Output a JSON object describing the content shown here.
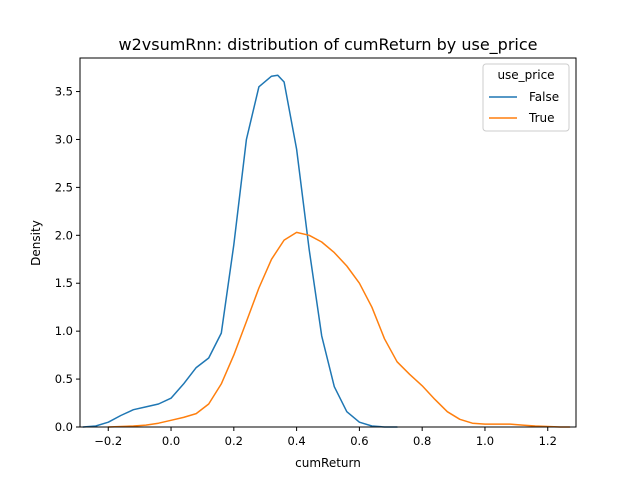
{
  "chart_data": {
    "type": "line",
    "title": "w2vsumRnn: distribution of cumReturn by use_price",
    "xlabel": "cumReturn",
    "ylabel": "Density",
    "xlim": [
      -0.29,
      1.29
    ],
    "ylim": [
      0,
      3.85
    ],
    "xticks": [
      -0.2,
      0.0,
      0.2,
      0.4,
      0.6,
      0.8,
      1.0,
      1.2
    ],
    "xtick_labels": [
      "−0.2",
      "0.0",
      "0.2",
      "0.4",
      "0.6",
      "0.8",
      "1.0",
      "1.2"
    ],
    "yticks": [
      0.0,
      0.5,
      1.0,
      1.5,
      2.0,
      2.5,
      3.0,
      3.5
    ],
    "ytick_labels": [
      "0.0",
      "0.5",
      "1.0",
      "1.5",
      "2.0",
      "2.5",
      "3.0",
      "3.5"
    ],
    "grid": false,
    "legend": {
      "title": "use_price",
      "placement": "top-right"
    },
    "series": [
      {
        "name": "False",
        "color": "#1f77b4",
        "x": [
          -0.28,
          -0.24,
          -0.2,
          -0.16,
          -0.12,
          -0.08,
          -0.04,
          0.0,
          0.04,
          0.08,
          0.12,
          0.16,
          0.2,
          0.24,
          0.28,
          0.32,
          0.34,
          0.36,
          0.4,
          0.44,
          0.48,
          0.52,
          0.56,
          0.6,
          0.64,
          0.68,
          0.72
        ],
        "y": [
          0.0,
          0.01,
          0.05,
          0.12,
          0.18,
          0.21,
          0.24,
          0.3,
          0.45,
          0.62,
          0.72,
          0.98,
          1.9,
          3.0,
          3.55,
          3.66,
          3.67,
          3.6,
          2.9,
          1.85,
          0.95,
          0.42,
          0.16,
          0.05,
          0.01,
          0.0,
          0.0
        ]
      },
      {
        "name": "True",
        "color": "#ff7f0e",
        "x": [
          -0.2,
          -0.16,
          -0.12,
          -0.08,
          -0.04,
          0.0,
          0.04,
          0.08,
          0.12,
          0.16,
          0.2,
          0.24,
          0.28,
          0.32,
          0.36,
          0.4,
          0.44,
          0.48,
          0.52,
          0.56,
          0.6,
          0.64,
          0.68,
          0.72,
          0.76,
          0.8,
          0.84,
          0.88,
          0.92,
          0.96,
          1.0,
          1.04,
          1.08,
          1.12,
          1.16,
          1.2,
          1.24,
          1.27
        ],
        "y": [
          0.0,
          0.005,
          0.01,
          0.02,
          0.04,
          0.07,
          0.1,
          0.14,
          0.24,
          0.45,
          0.75,
          1.1,
          1.45,
          1.75,
          1.95,
          2.03,
          2.0,
          1.93,
          1.82,
          1.68,
          1.5,
          1.25,
          0.92,
          0.68,
          0.55,
          0.43,
          0.29,
          0.16,
          0.08,
          0.04,
          0.03,
          0.03,
          0.03,
          0.02,
          0.01,
          0.005,
          0.0,
          0.0
        ]
      }
    ]
  }
}
